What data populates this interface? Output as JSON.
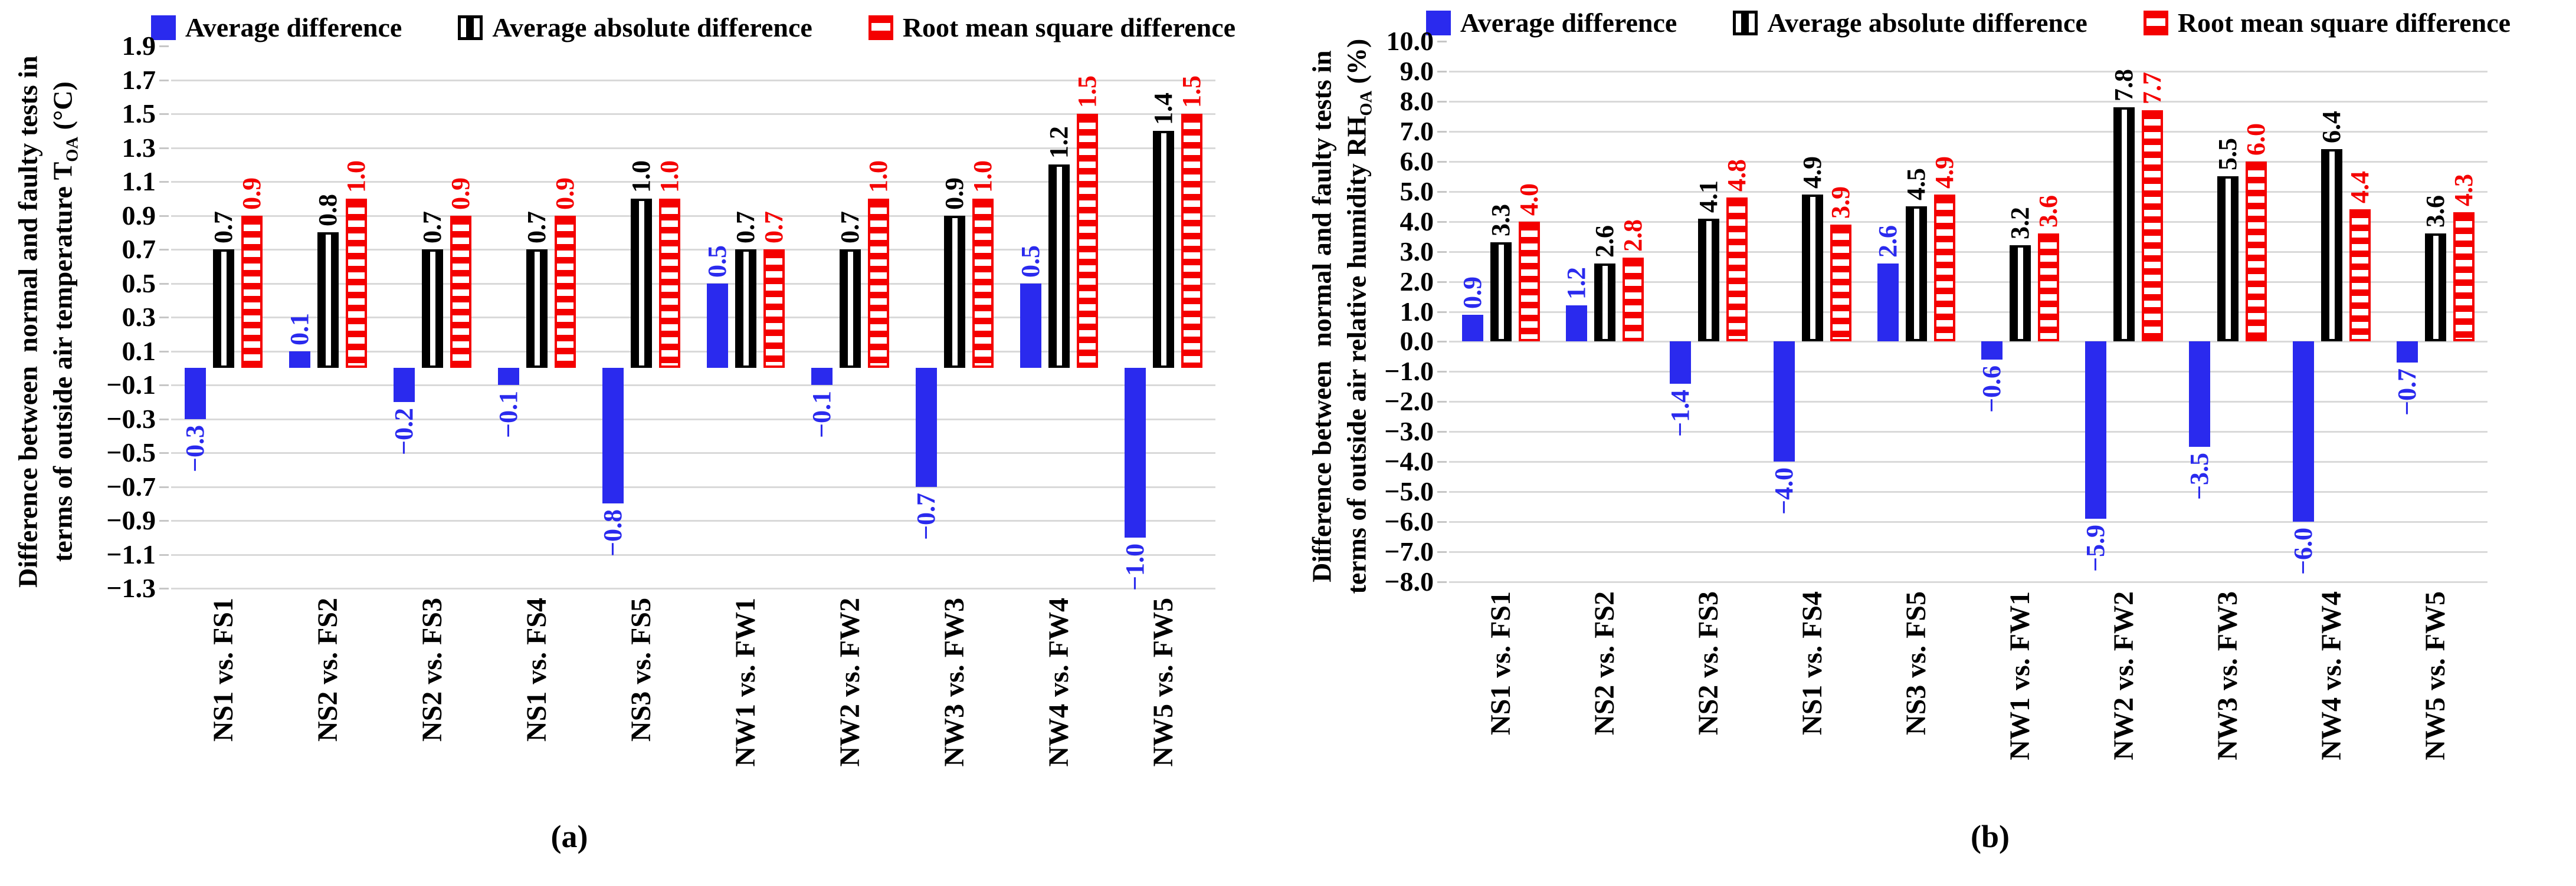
{
  "legend": [
    {
      "name": "average-difference",
      "label": "Average difference",
      "color": "#2a2aee",
      "pattern": "solid"
    },
    {
      "name": "average-absolute-difference",
      "label": "Average absolute difference",
      "color": "#000000",
      "pattern": "vertical-stripes"
    },
    {
      "name": "root-mean-square-difference",
      "label": "Root mean square difference",
      "color": "#f40000",
      "pattern": "horizontal-stripes"
    }
  ],
  "captions": {
    "a": "(a)",
    "b": "(b)"
  },
  "colors": {
    "blue": "#2a2aee",
    "red": "#f40000",
    "black": "#000000",
    "gridline": "#d9d9d9",
    "background": "#ffffff"
  },
  "chart_data": [
    {
      "type": "bar",
      "panel": "a",
      "title": "",
      "xlabel": "",
      "ylabel_line1": "Difference between  normal and faulty tests in",
      "ylabel_line2": {
        "pre": "terms of outside air temperature T",
        "sub": "OA",
        "post": " (°C)"
      },
      "ylabel_plain": "Difference between normal and faulty tests in terms of outside air temperature TOA (°C)",
      "ylim": [
        -1.3,
        1.9
      ],
      "ytick_step": 0.2,
      "ytick_decimals": 1,
      "grid": true,
      "legend_position": "top",
      "categories": [
        "NS1 vs. FS1",
        "NS2 vs. FS2",
        "NS2 vs. FS3",
        "NS1 vs. FS4",
        "NS3 vs. FS5",
        "NW1 vs. FW1",
        "NW2 vs. FW2",
        "NW3 vs. FW3",
        "NW4 vs. FW4",
        "NW5 vs. FW5"
      ],
      "series": [
        {
          "name": "Average difference",
          "values": [
            -0.3,
            0.1,
            -0.2,
            -0.1,
            -0.8,
            0.5,
            -0.1,
            -0.7,
            0.5,
            -1.0
          ]
        },
        {
          "name": "Average absolute difference",
          "values": [
            0.7,
            0.8,
            0.7,
            0.7,
            1.0,
            0.7,
            0.7,
            0.9,
            1.2,
            1.4
          ]
        },
        {
          "name": "Root mean square difference",
          "values": [
            0.9,
            1.0,
            0.9,
            0.9,
            1.0,
            0.7,
            1.0,
            1.0,
            1.5,
            1.5
          ]
        }
      ]
    },
    {
      "type": "bar",
      "panel": "b",
      "title": "",
      "xlabel": "",
      "ylabel_line1": "Difference between  normal and faulty tests in",
      "ylabel_line2": {
        "pre": "terms of outside air relative humidity RH",
        "sub": "OA",
        "post": " (%)"
      },
      "ylabel_plain": "Difference between normal and faulty tests in terms of outside air relative humidity RHOA (%)",
      "ylim": [
        -8.0,
        10.0
      ],
      "ytick_step": 1.0,
      "ytick_decimals": 1,
      "grid": true,
      "legend_position": "top",
      "categories": [
        "NS1 vs. FS1",
        "NS2 vs. FS2",
        "NS2 vs. FS3",
        "NS1 vs. FS4",
        "NS3 vs. FS5",
        "NW1 vs. FW1",
        "NW2 vs. FW2",
        "NW3 vs. FW3",
        "NW4 vs. FW4",
        "NW5 vs. FW5"
      ],
      "series": [
        {
          "name": "Average difference",
          "values": [
            0.9,
            1.2,
            -1.4,
            -4.0,
            2.6,
            -0.6,
            -5.9,
            -3.5,
            -6.0,
            -0.7
          ]
        },
        {
          "name": "Average absolute difference",
          "values": [
            3.3,
            2.6,
            4.1,
            4.9,
            4.5,
            3.2,
            7.8,
            5.5,
            6.4,
            3.6
          ]
        },
        {
          "name": "Root mean square difference",
          "values": [
            4.0,
            2.8,
            4.8,
            3.9,
            4.9,
            3.6,
            7.7,
            6.0,
            4.4,
            4.3
          ]
        }
      ]
    }
  ]
}
